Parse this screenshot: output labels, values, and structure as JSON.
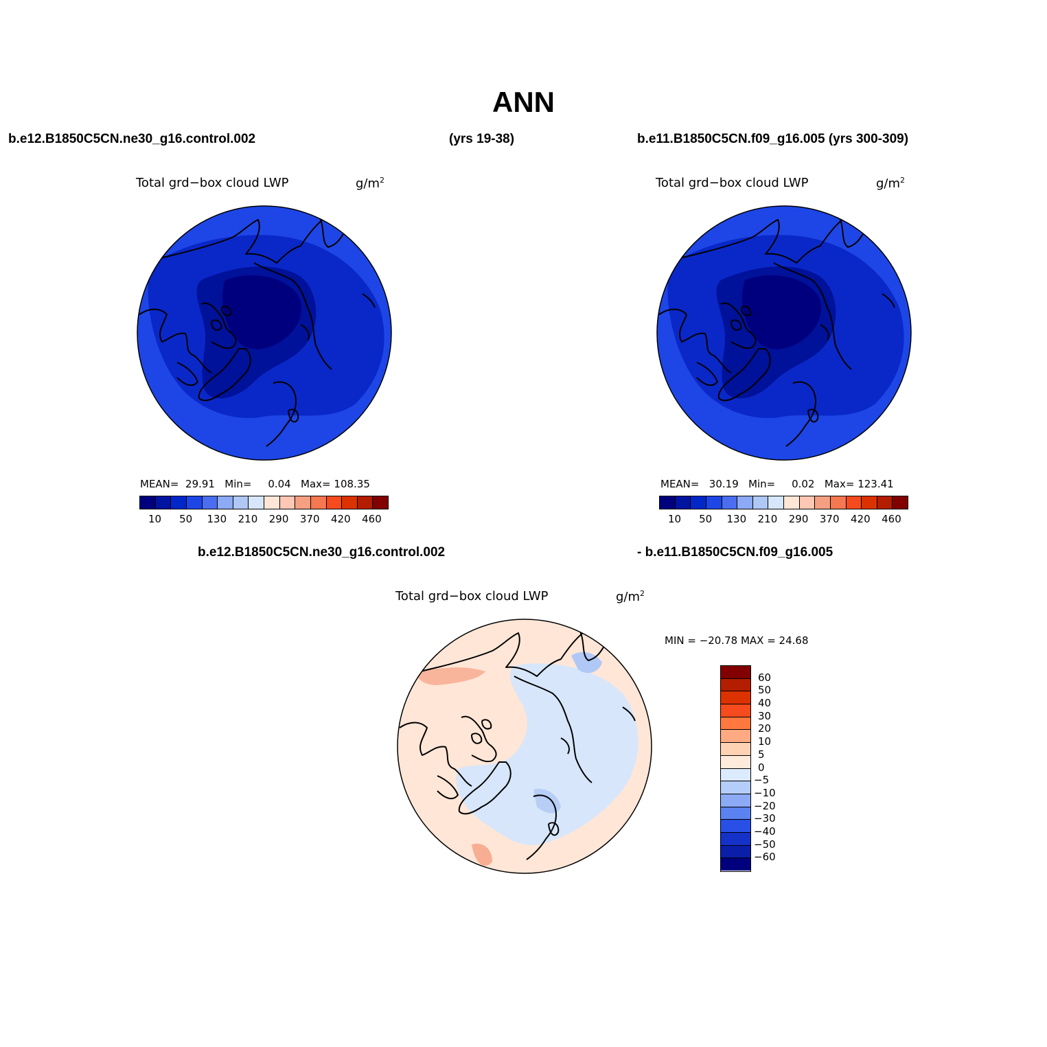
{
  "title": "ANN",
  "header": {
    "left_case": "b.e12.B1850C5CN.ne30_g16.control.002",
    "left_years": "(yrs 19-38)",
    "right_case": "b.e11.B1850C5CN.f09_g16.005 (yrs 300-309)",
    "diff_case_a": "b.e12.B1850C5CN.ne30_g16.control.002",
    "diff_case_b": "- b.e11.B1850C5CN.f09_g16.005"
  },
  "panels": [
    {
      "variable": "Total grd−box cloud LWP",
      "units_base": "g/m",
      "units_exp": "2",
      "stats": {
        "mean_label": "MEAN=",
        "mean": "29.91",
        "min_label": "Min=",
        "min": "0.04",
        "max_label": "Max=",
        "max": "108.35"
      }
    },
    {
      "variable": "Total grd−box cloud LWP",
      "units_base": "g/m",
      "units_exp": "2",
      "stats": {
        "mean_label": "MEAN=",
        "mean": "30.19",
        "min_label": "Min=",
        "min": "0.02",
        "max_label": "Max=",
        "max": "123.41"
      }
    },
    {
      "variable": "Total grd−box cloud LWP",
      "units_base": "g/m",
      "units_exp": "2",
      "stats": {
        "text": "MIN = −20.78 MAX =   24.68"
      }
    }
  ],
  "colorbar_abs": {
    "colors": [
      "#00007f",
      "#0014a0",
      "#0028c8",
      "#1e46e6",
      "#4b6ef0",
      "#8caaf5",
      "#afc8f5",
      "#d7e6fa",
      "#ffe6d7",
      "#ffc8b4",
      "#f5a082",
      "#f57850",
      "#f54b1e",
      "#dc3200",
      "#b41e00",
      "#820000"
    ],
    "labels": [
      "10",
      "50",
      "130",
      "210",
      "290",
      "370",
      "420",
      "460"
    ]
  },
  "colorbar_diff": {
    "colors": [
      "#820000",
      "#b41e00",
      "#dc3200",
      "#f54b1e",
      "#ff7840",
      "#ffaa82",
      "#ffd2b4",
      "#ffebdc",
      "#dceaff",
      "#b4cdfa",
      "#8caaf5",
      "#5a82f0",
      "#2850e6",
      "#1432c8",
      "#0a1eaa",
      "#00007f"
    ],
    "labels": [
      "60",
      "50",
      "40",
      "30",
      "20",
      "10",
      "5",
      "0",
      "−5",
      "−10",
      "−20",
      "−30",
      "−40",
      "−50",
      "−60"
    ]
  },
  "map_colors": {
    "abs_outer": "#1e46e6",
    "abs_mid": "#0a28c8",
    "abs_inner": "#00119a",
    "abs_core": "#00007f",
    "diff_pos": "#ffe6d7",
    "diff_neg": "#d7e6fa",
    "diff_pos2": "#f5a082",
    "diff_neg2": "#afc8f5"
  }
}
